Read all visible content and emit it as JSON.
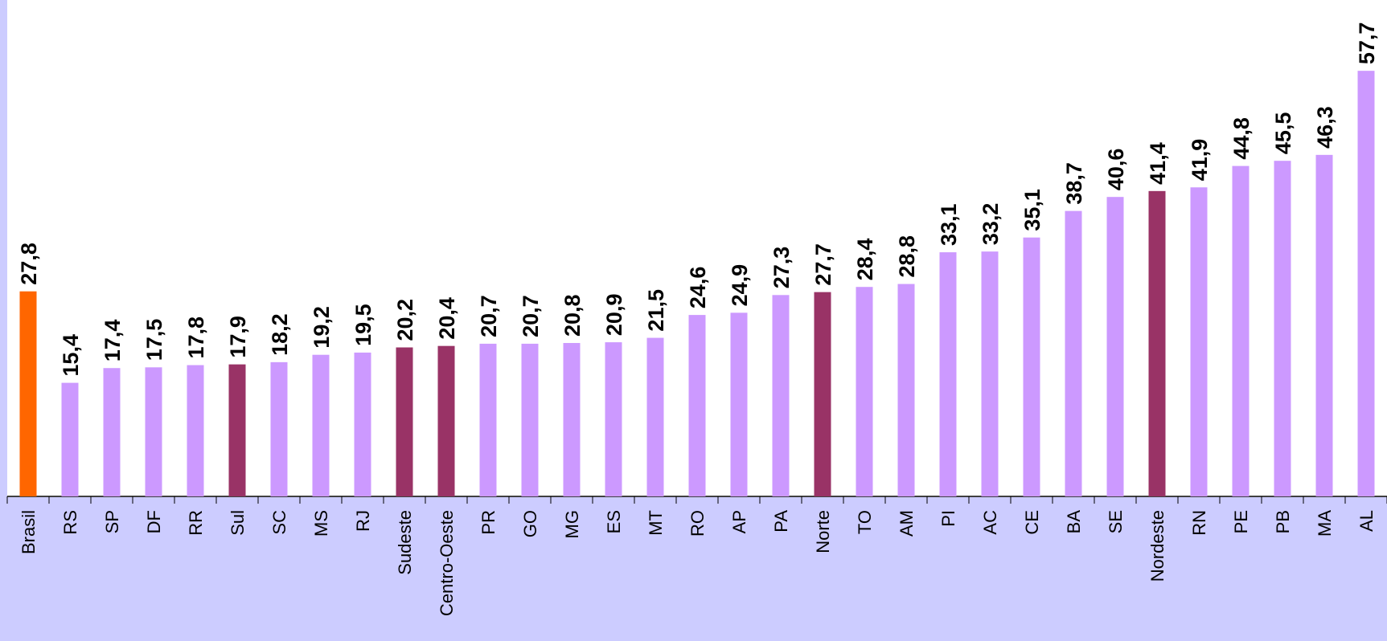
{
  "chart_data": {
    "type": "bar",
    "categories": [
      "Brasil",
      "RS",
      "SP",
      "DF",
      "RR",
      "Sul",
      "SC",
      "MS",
      "RJ",
      "Sudeste",
      "Centro-Oeste",
      "PR",
      "GO",
      "MG",
      "ES",
      "MT",
      "RO",
      "AP",
      "PA",
      "Norte",
      "TO",
      "AM",
      "PI",
      "AC",
      "CE",
      "BA",
      "SE",
      "Nordeste",
      "RN",
      "PE",
      "PB",
      "MA",
      "AL"
    ],
    "values": [
      27.8,
      15.4,
      17.4,
      17.5,
      17.8,
      17.9,
      18.2,
      19.2,
      19.5,
      20.2,
      20.4,
      20.7,
      20.7,
      20.8,
      20.9,
      21.5,
      24.6,
      24.9,
      27.3,
      27.7,
      28.4,
      28.8,
      33.1,
      33.2,
      35.1,
      38.7,
      40.6,
      41.4,
      41.9,
      44.8,
      45.5,
      46.3,
      57.7
    ],
    "value_labels": [
      "27,8",
      "15,4",
      "17,4",
      "17,5",
      "17,8",
      "17,9",
      "18,2",
      "19,2",
      "19,5",
      "20,2",
      "20,4",
      "20,7",
      "20,7",
      "20,8",
      "20,9",
      "21,5",
      "24,6",
      "24,9",
      "27,3",
      "27,7",
      "28,4",
      "28,8",
      "33,1",
      "33,2",
      "35,1",
      "38,7",
      "40,6",
      "41,4",
      "41,9",
      "44,8",
      "45,5",
      "46,3",
      "57,7"
    ],
    "colors": [
      "#ff6600",
      "#cc99ff",
      "#cc99ff",
      "#cc99ff",
      "#cc99ff",
      "#993366",
      "#cc99ff",
      "#cc99ff",
      "#cc99ff",
      "#993366",
      "#993366",
      "#cc99ff",
      "#cc99ff",
      "#cc99ff",
      "#cc99ff",
      "#cc99ff",
      "#cc99ff",
      "#cc99ff",
      "#cc99ff",
      "#993366",
      "#cc99ff",
      "#cc99ff",
      "#cc99ff",
      "#cc99ff",
      "#cc99ff",
      "#cc99ff",
      "#cc99ff",
      "#993366",
      "#cc99ff",
      "#cc99ff",
      "#cc99ff",
      "#cc99ff",
      "#cc99ff"
    ],
    "ylim": [
      0,
      67.3
    ]
  }
}
